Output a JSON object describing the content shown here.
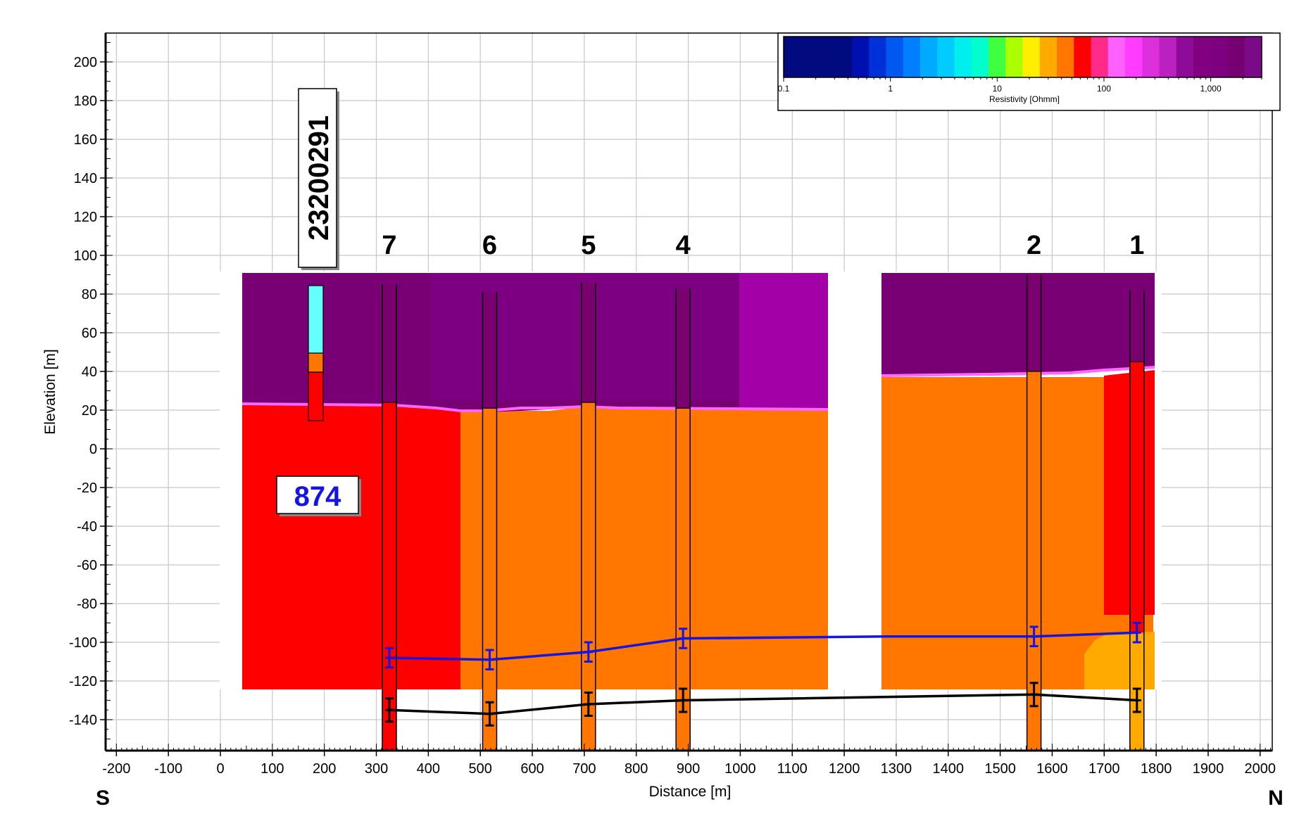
{
  "axes": {
    "xlabel": "Distance [m]",
    "ylabel": "Elevation [m]",
    "x_ticks": [
      "-200",
      "-100",
      "0",
      "100",
      "200",
      "300",
      "400",
      "500",
      "600",
      "700",
      "800",
      "900",
      "1000",
      "1100",
      "1200",
      "1300",
      "1400",
      "1500",
      "1600",
      "1700",
      "1800",
      "1900",
      "2000"
    ],
    "y_ticks": [
      "200",
      "180",
      "160",
      "140",
      "120",
      "100",
      "80",
      "60",
      "40",
      "20",
      "0",
      "-20",
      "-40",
      "-60",
      "-80",
      "-100",
      "-120",
      "-140"
    ],
    "xlim": [
      -220,
      2020
    ],
    "ylim": [
      -155,
      215
    ],
    "grid": true
  },
  "direction": {
    "left": "S",
    "right": "N"
  },
  "legend": {
    "title": "Resistivity [Ohmm]",
    "tick_labels": [
      "0.1",
      "1",
      "10",
      "100",
      "1,000"
    ],
    "tick_values": [
      0.1,
      1,
      10,
      100,
      1000
    ],
    "colors": [
      "#010a7e",
      "#010a7e",
      "#010a7e",
      "#010a7e",
      "#0010b0",
      "#0030d8",
      "#0058f0",
      "#0080ff",
      "#00aaff",
      "#00ccff",
      "#00eeee",
      "#00ffcc",
      "#40ff40",
      "#aaff00",
      "#ffee00",
      "#ffaa00",
      "#ff7700",
      "#ff0000",
      "#ff2a8a",
      "#ff60ff",
      "#ff3cff",
      "#dd30dd",
      "#bb20c0",
      "#8e0a98",
      "#800080",
      "#7d0080",
      "#760072",
      "#7a0a88"
    ]
  },
  "labels": {
    "borehole_id": "23200291",
    "sounding_id": "874"
  },
  "colors": {
    "purple_dark": "#780074",
    "purple_mid": "#7e0082",
    "magenta": "#a400a8",
    "red": "#ff0000",
    "orange": "#ff7700",
    "yellow_orange": "#ffaa00",
    "cyan": "#66ffff",
    "blue_line": "#1414e6",
    "black_line": "#000000"
  },
  "chart_data": {
    "type": "line",
    "title": "",
    "xlabel": "Distance [m]",
    "ylabel": "Elevation [m]",
    "xlim": [
      -220,
      2020
    ],
    "ylim": [
      -155,
      215
    ],
    "wells": [
      {
        "name": "7",
        "x": 325,
        "top": 85,
        "bottom": -155,
        "interface": 24
      },
      {
        "name": "6",
        "x": 518,
        "top": 81,
        "bottom": -155,
        "interface": 21
      },
      {
        "name": "5",
        "x": 708,
        "top": 86,
        "bottom": -155,
        "interface": 24
      },
      {
        "name": "4",
        "x": 890,
        "top": 83,
        "bottom": -155,
        "interface": 21
      },
      {
        "name": "2",
        "x": 1565,
        "top": 90,
        "bottom": -155,
        "interface": 40
      },
      {
        "name": "1",
        "x": 1763,
        "top": 82,
        "bottom": -155,
        "interface": 45
      }
    ],
    "series": [
      {
        "name": "",
        "color": "#1414e6",
        "x": [
          325,
          518,
          708,
          890,
          1280,
          1565,
          1763
        ],
        "y": [
          -108,
          -109,
          -105,
          -98,
          -97,
          -97,
          -95
        ],
        "error_x": [
          325,
          518,
          708,
          890,
          1565,
          1763
        ],
        "error_y": [
          -108,
          -109,
          -105,
          -98,
          -97,
          -95
        ],
        "error": 5
      },
      {
        "name": "",
        "color": "#000000",
        "x": [
          325,
          518,
          708,
          890,
          1565,
          1763
        ],
        "y": [
          -135,
          -137,
          -132,
          -130,
          -127,
          -130
        ],
        "error_x": [
          325,
          518,
          708,
          890,
          1565,
          1763
        ],
        "error_y": [
          -135,
          -137,
          -132,
          -130,
          -127,
          -130
        ],
        "error": 6
      }
    ]
  }
}
